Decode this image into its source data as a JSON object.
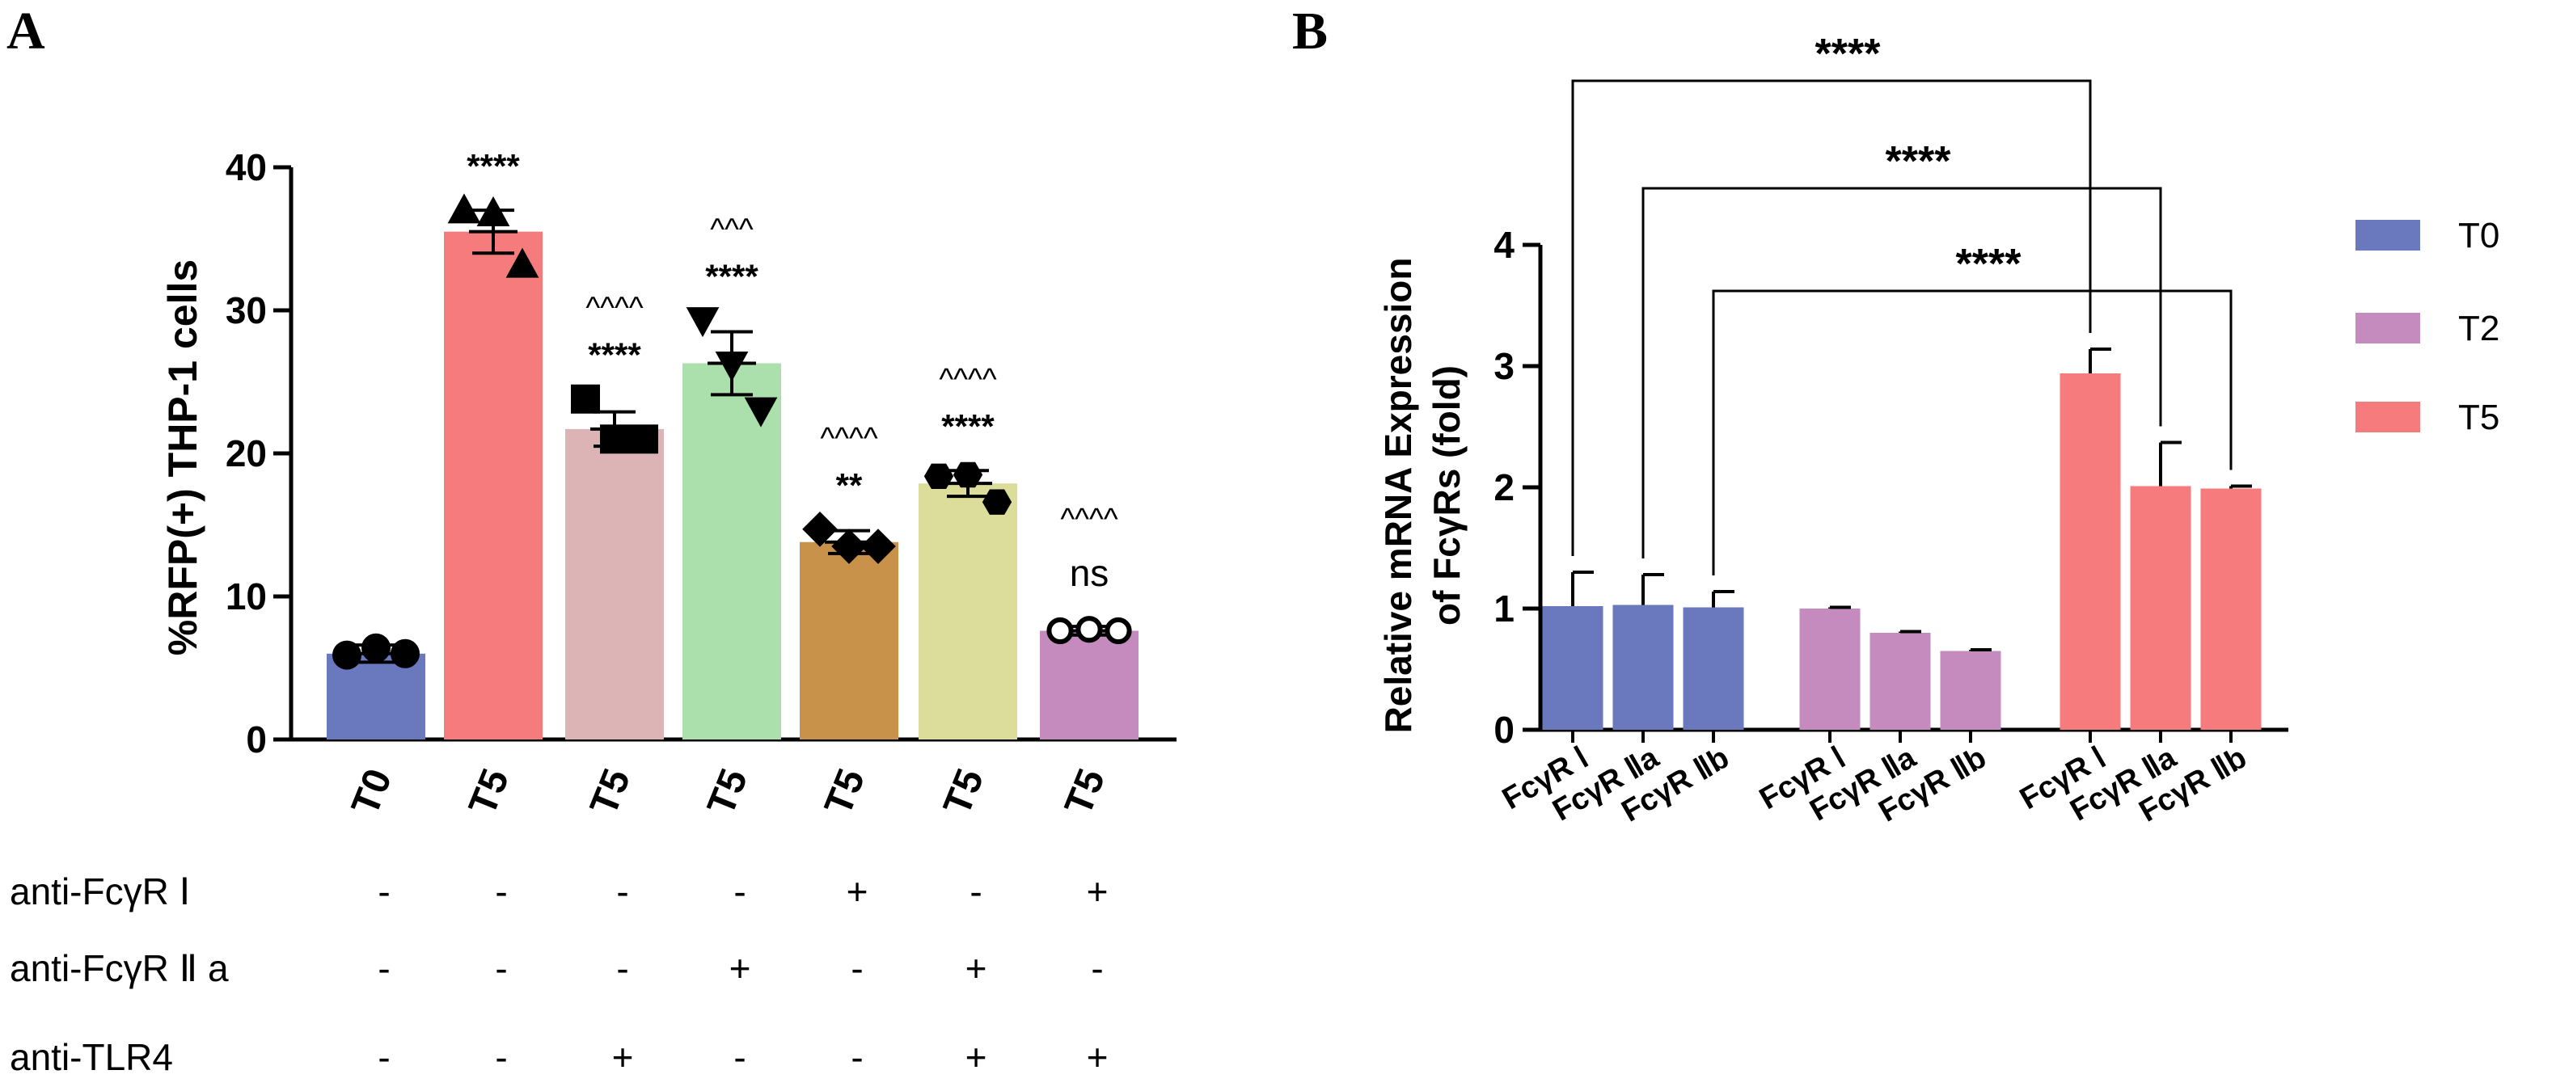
{
  "chart_data": [
    {
      "panel_label": "A",
      "type": "bar",
      "ylabel": "%RFP(+) THP-1 cells",
      "ylim": [
        0,
        40
      ],
      "yticks": [
        "0",
        "10",
        "20",
        "30",
        "40"
      ],
      "categories": [
        "T0",
        "T5",
        "T5",
        "T5",
        "T5",
        "T5",
        "T5"
      ],
      "values": [
        6.0,
        35.5,
        21.7,
        26.3,
        13.8,
        17.9,
        7.6
      ],
      "errors": [
        0.6,
        1.5,
        1.2,
        2.2,
        0.8,
        0.9,
        0.3
      ],
      "points": [
        [
          5.9,
          6.4,
          6.0
        ],
        [
          37.0,
          36.8,
          33.2
        ],
        [
          23.8,
          21.0,
          21.0
        ],
        [
          29.3,
          26.2,
          23.0
        ],
        [
          14.7,
          13.5,
          13.5
        ],
        [
          18.4,
          18.5,
          16.6
        ],
        [
          7.6,
          7.7,
          7.6
        ]
      ],
      "markers": [
        "circle",
        "triangle-up",
        "square",
        "triangle-down",
        "diamond",
        "hexagon",
        "open-circle"
      ],
      "colors": [
        "#6a78bd",
        "#f67b7c",
        "#dcb4b5",
        "#abdfac",
        "#c8924a",
        "#dcdd9a",
        "#c68bbe"
      ],
      "significance": [
        "",
        "****",
        "****",
        "****",
        "**",
        "****",
        "ns"
      ],
      "significance_tlr": [
        "",
        "",
        "^^^^",
        "^^^",
        "^^^^",
        "^^^^",
        "^^^^"
      ],
      "treatments": [
        {
          "label": "anti-FcγR Ⅰ",
          "signs": [
            "-",
            "-",
            "-",
            "-",
            "+",
            "-",
            "+"
          ]
        },
        {
          "label": "anti-FcγR Ⅱ a",
          "signs": [
            "-",
            "-",
            "-",
            "+",
            "-",
            "+",
            "-"
          ]
        },
        {
          "label": "anti-TLR4",
          "signs": [
            "-",
            "-",
            "+",
            "-",
            "-",
            "+",
            "+"
          ]
        }
      ]
    },
    {
      "panel_label": "B",
      "type": "bar",
      "ylabel_line1": "Relative mRNA Expression",
      "ylabel_line2": "of FcγRs (fold)",
      "ylim": [
        0,
        4
      ],
      "yticks": [
        "0",
        "1",
        "2",
        "3",
        "4"
      ],
      "categories": [
        "FcγR Ⅰ",
        "FcγR Ⅱa",
        "FcγR Ⅱb"
      ],
      "series": [
        {
          "name": "T0",
          "color": "#6a78bd",
          "values": [
            1.02,
            1.03,
            1.01
          ],
          "errors": [
            0.28,
            0.25,
            0.13
          ]
        },
        {
          "name": "T2",
          "color": "#c68bbe",
          "values": [
            1.0,
            0.8,
            0.65
          ],
          "errors": [
            0.01,
            0.01,
            0.01
          ]
        },
        {
          "name": "T5",
          "color": "#f67b7c",
          "values": [
            2.94,
            2.01,
            1.99
          ],
          "errors": [
            0.2,
            0.36,
            0.02
          ]
        }
      ],
      "comparisons": [
        {
          "from": "T0 FcγR Ⅰ",
          "to": "T5 FcγR Ⅰ",
          "label": "****"
        },
        {
          "from": "T0 FcγR Ⅱa",
          "to": "T5 FcγR Ⅱa",
          "label": "****"
        },
        {
          "from": "T0 FcγR Ⅱb",
          "to": "T5 FcγR Ⅱb",
          "label": "****"
        }
      ]
    }
  ]
}
